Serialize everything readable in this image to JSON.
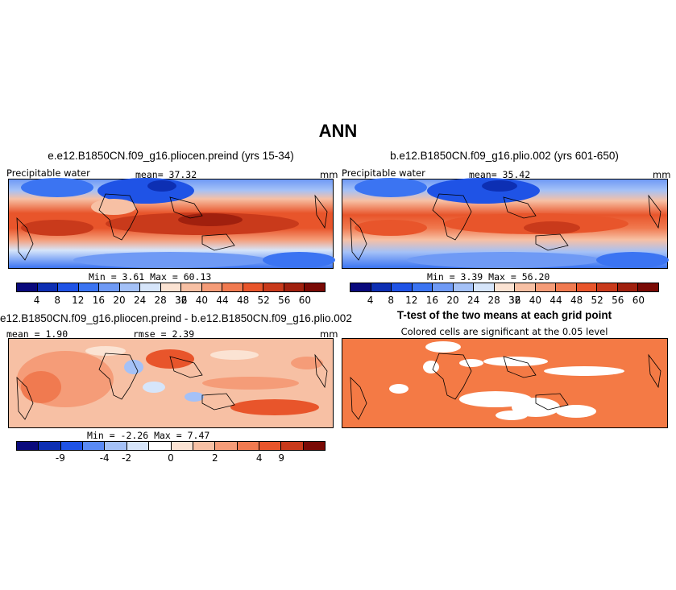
{
  "title": "ANN",
  "panels": {
    "p1": {
      "title": "e.e12.B1850CN.f09_g16.pliocen.preind (yrs 15-34)",
      "left_label": "Precipitable water",
      "mean_label": "mean=   37.32",
      "unit": "mm",
      "stats": "Min =    3.61  Max =   60.13"
    },
    "p2": {
      "title": "b.e12.B1850CN.f09_g16.plio.002 (yrs 601-650)",
      "left_label": "Precipitable water",
      "mean_label": "mean=   35.42",
      "unit": "mm",
      "stats": "Min =    3.39  Max =   56.20"
    },
    "p3": {
      "title": "e12.B1850CN.f09_g16.pliocen.preind - b.e12.B1850CN.f09_g16.plio.002",
      "left_label": "mean =   1.90",
      "mean_label": "rmse =   2.39",
      "unit": "mm",
      "stats": "Min =   -2.26  Max =    7.47"
    },
    "p4": {
      "title": "T-test of the two means at each grid point",
      "subtitle": "Colored cells are significant at the 0.05 level"
    }
  },
  "colorbars": {
    "abs": {
      "colors": [
        "#0a0a7d",
        "#0d2fb3",
        "#1f53e6",
        "#3b74f2",
        "#6f9af5",
        "#a4c1f7",
        "#d6e5fa",
        "#fbe3d3",
        "#f7c0a4",
        "#f59c78",
        "#f07a50",
        "#e8552b",
        "#c93a1b",
        "#a0200e",
        "#7a0a05"
      ],
      "ticks": [
        "4",
        "8",
        "12",
        "16",
        "20",
        "24",
        "28",
        "32",
        "36",
        "40",
        "44",
        "48",
        "52",
        "56",
        "60"
      ]
    },
    "diff": {
      "colors": [
        "#0a0a7d",
        "#0d2fb3",
        "#1f53e6",
        "#5a8af4",
        "#a4c1f7",
        "#d6e5fa",
        "#ffffff",
        "#fbe3d3",
        "#f7c0a4",
        "#f59c78",
        "#f07a50",
        "#e8552b",
        "#c93a1b",
        "#7a0a05"
      ],
      "ticks": [
        "-9",
        "-4",
        "-2",
        "0",
        "2",
        "4",
        "9"
      ]
    }
  },
  "ttest_color": "#f47a45"
}
